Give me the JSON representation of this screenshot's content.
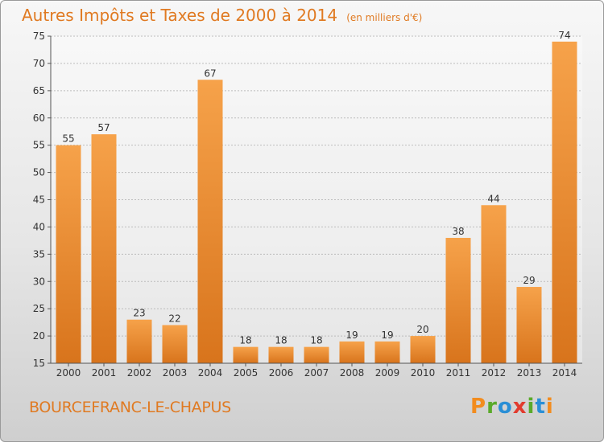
{
  "chart_data": {
    "type": "bar",
    "title": "Autres Impôts et Taxes de 2000 à 2014",
    "unit": "(en milliers d'€)",
    "categories": [
      "2000",
      "2001",
      "2002",
      "2003",
      "2004",
      "2005",
      "2006",
      "2007",
      "2008",
      "2009",
      "2010",
      "2011",
      "2012",
      "2013",
      "2014"
    ],
    "values": [
      55,
      57,
      23,
      22,
      67,
      18,
      18,
      18,
      19,
      19,
      20,
      38,
      44,
      29,
      74
    ],
    "ylim": [
      15,
      75
    ],
    "yticks": [
      15,
      20,
      25,
      30,
      35,
      40,
      45,
      50,
      55,
      60,
      65,
      70,
      75
    ],
    "grid": true,
    "bar_color": "#f0902e",
    "text_color": "#e07a22"
  },
  "footer": {
    "place": "BOURCEFRANC-LE-CHAPUS",
    "brand": [
      "P",
      "r",
      "o",
      "x",
      "i",
      "t",
      "i"
    ],
    "brand_colors": [
      "#f28c1e",
      "#5aaa2a",
      "#2a8fd6",
      "#e23b2e",
      "#5aaa2a",
      "#2a8fd6",
      "#f28c1e"
    ]
  }
}
